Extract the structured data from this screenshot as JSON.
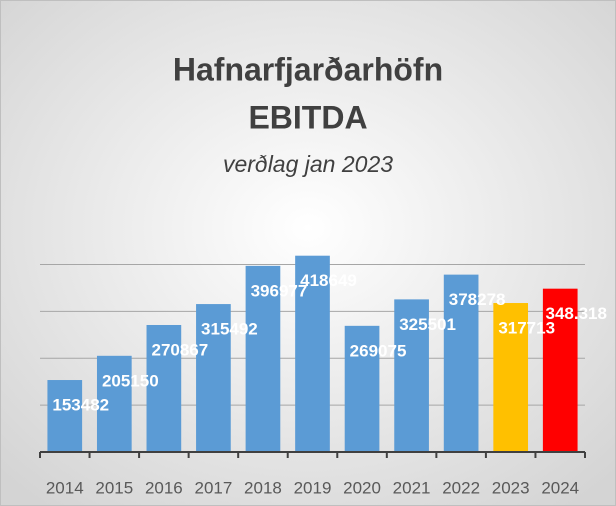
{
  "chart_data": {
    "type": "bar",
    "title": "Hafnarfjarðarhöfn",
    "subtitle_line": "EBITDA",
    "subtitle": "verðlag jan 2023",
    "categories": [
      "2014",
      "2015",
      "2016",
      "2017",
      "2018",
      "2019",
      "2020",
      "2021",
      "2022",
      "2023",
      "2024"
    ],
    "values": [
      153482,
      205150,
      270867,
      315492,
      396977,
      418649,
      269075,
      325501,
      378278,
      317713,
      348318
    ],
    "value_labels": [
      "153482",
      "205150",
      "270867",
      "315492",
      "396977",
      "418649",
      "269075",
      "325501",
      "378278",
      "317713",
      "348.318"
    ],
    "colors": [
      "#5b9bd5",
      "#5b9bd5",
      "#5b9bd5",
      "#5b9bd5",
      "#5b9bd5",
      "#5b9bd5",
      "#5b9bd5",
      "#5b9bd5",
      "#5b9bd5",
      "#ffc000",
      "#ff0000"
    ],
    "ylim": [
      0,
      450000
    ],
    "yticks": [
      0,
      100000,
      200000,
      300000,
      400000
    ],
    "grid": true
  }
}
